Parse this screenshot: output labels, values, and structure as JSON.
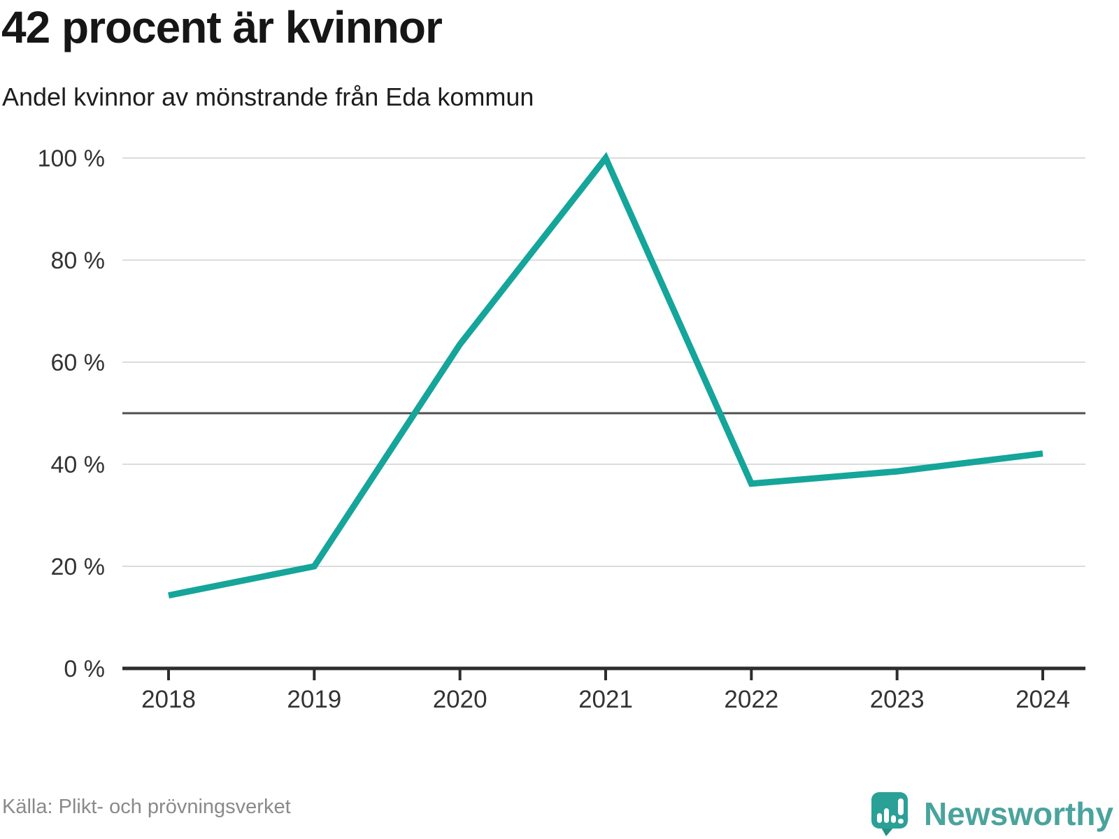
{
  "header": {
    "title": "42 procent är kvinnor",
    "subtitle": "Andel kvinnor av mönstrande från Eda kommun"
  },
  "chart_data": {
    "type": "line",
    "title": "42 procent är kvinnor",
    "subtitle": "Andel kvinnor av mönstrande från Eda kommun",
    "x": [
      "2018",
      "2019",
      "2020",
      "2021",
      "2022",
      "2023",
      "2024"
    ],
    "series": [
      {
        "name": "Andel kvinnor av mönstrande",
        "values": [
          14.3,
          20,
          63.5,
          100,
          36.2,
          38.6,
          42.1
        ]
      }
    ],
    "xlabel": "",
    "ylabel": "",
    "ylim": [
      0,
      100
    ],
    "yticks": [
      0,
      20,
      40,
      60,
      80,
      100
    ],
    "ytick_suffix": " %",
    "reference_line": 50,
    "grid": true,
    "legend": "none",
    "line_color": "#15a59a"
  },
  "footer": {
    "source": "Källa: Plikt- och prövningsverket",
    "logo_text": "Newsworthy"
  },
  "colors": {
    "accent_teal": "#15a59a",
    "logo_bubble": "#2aa096",
    "logo_tail": "#249188",
    "logo_word": "#4ba39d",
    "grid": "#dcdcdc",
    "reference_line": "#4f4f4f",
    "axis": "#2d2d2d",
    "tick_text": "#333333",
    "source_text": "#8a8a8a"
  }
}
